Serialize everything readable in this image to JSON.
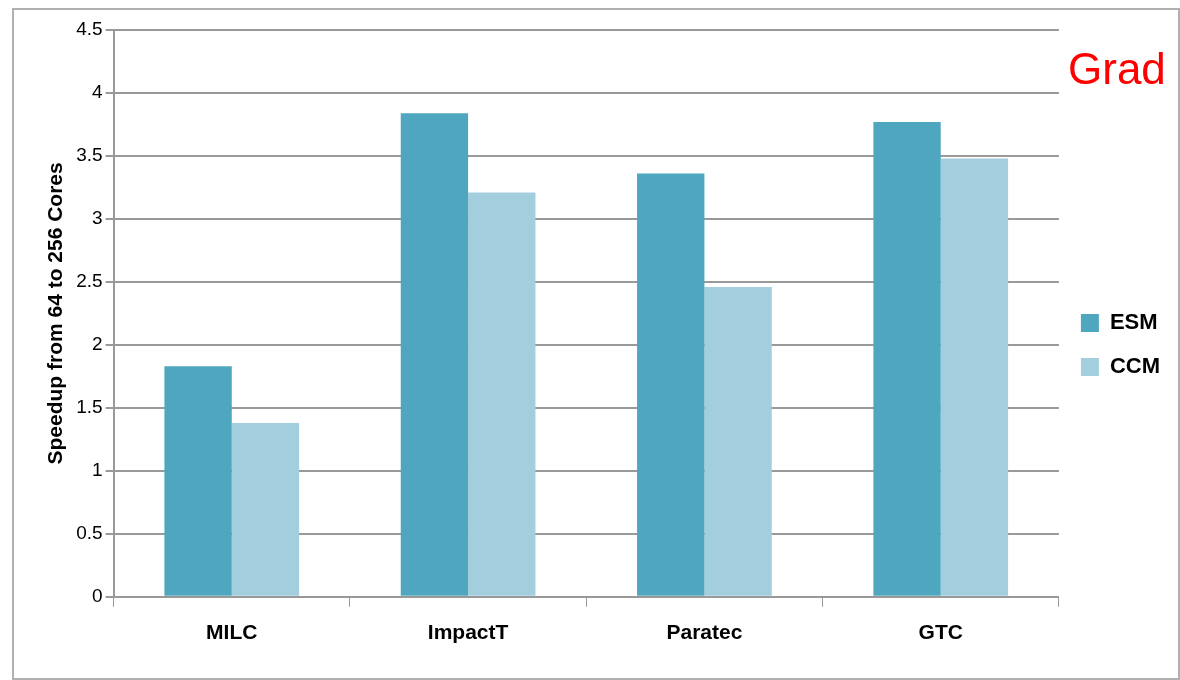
{
  "chart_data": {
    "type": "bar",
    "ylabel": "Speedup from 64 to 256 Cores",
    "categories": [
      "MILC",
      "ImpactT",
      "Paratec",
      "GTC"
    ],
    "series": [
      {
        "name": "ESM",
        "color": "#4fa7bf",
        "values": [
          1.83,
          3.84,
          3.36,
          3.77
        ]
      },
      {
        "name": "CCM",
        "color": "#a3cedd",
        "values": [
          1.38,
          3.21,
          2.46,
          3.48
        ]
      }
    ],
    "ylim": [
      0,
      4.5
    ],
    "yticks": [
      0,
      0.5,
      1,
      1.5,
      2,
      2.5,
      3,
      3.5,
      4,
      4.5
    ],
    "grid": "y",
    "legend": "right",
    "annotations": [
      "Grad"
    ]
  }
}
